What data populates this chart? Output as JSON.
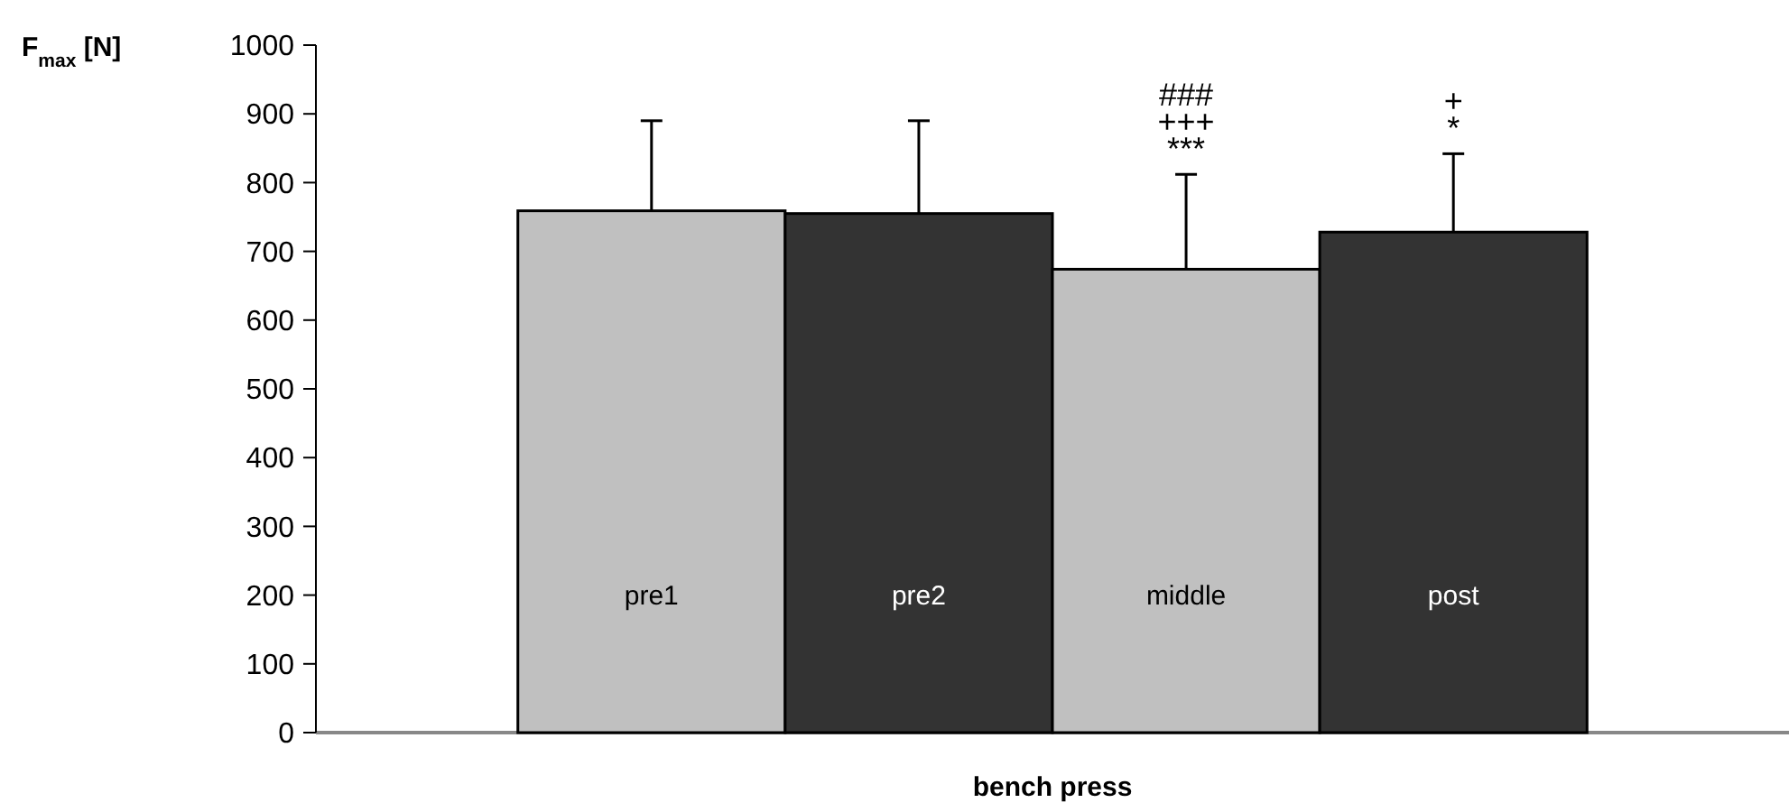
{
  "chart_data": {
    "type": "bar",
    "categories": [
      "bench press"
    ],
    "ylabel": "F$_{max}$ [N]",
    "series": [
      {
        "name": "pre1",
        "color": "#c0c0c0",
        "values": [
          759
        ],
        "errors": [
          [
            759,
            890
          ]
        ]
      },
      {
        "name": "pre2",
        "color": "#333333",
        "values": [
          755
        ],
        "errors": [
          [
            755,
            890
          ]
        ]
      },
      {
        "name": "middle",
        "color": "#c0c0c0",
        "values": [
          674
        ],
        "errors": [
          [
            674,
            812
          ]
        ]
      },
      {
        "name": "post",
        "color": "#333333",
        "values": [
          728
        ],
        "errors": [
          [
            728,
            842
          ]
        ]
      }
    ],
    "annotations": [
      "***",
      "+++",
      "###",
      "*",
      "+"
    ],
    "ylim": [
      0,
      1000
    ],
    "yticks": [
      0,
      100,
      200,
      300,
      400,
      500,
      600,
      700,
      800,
      900,
      1000
    ],
    "grid": false,
    "legend": false
  }
}
